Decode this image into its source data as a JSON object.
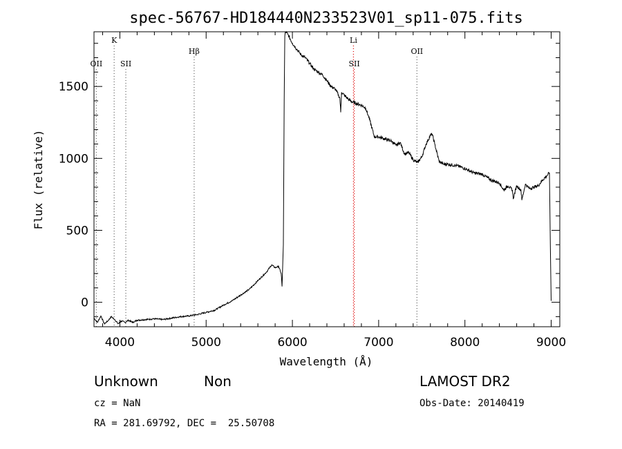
{
  "chart_data": {
    "type": "line",
    "title": "spec-56767-HD184440N233523V01_sp11-075.fits",
    "xlabel": "Wavelength (Å)",
    "ylabel": "Flux (relative)",
    "xlim": [
      3700,
      9100
    ],
    "ylim": [
      -170,
      1880
    ],
    "x_ticks": [
      "4000",
      "5000",
      "6000",
      "7000",
      "8000",
      "9000"
    ],
    "y_ticks": [
      "0",
      "500",
      "1000",
      "1500"
    ],
    "x_tick_values": [
      4000,
      5000,
      6000,
      7000,
      8000,
      9000
    ],
    "y_tick_values": [
      0,
      500,
      1000,
      1500
    ],
    "grid": false,
    "lines": [
      {
        "label": "OII",
        "x": 3727,
        "row": 2,
        "style": "dotted",
        "color": "#666666"
      },
      {
        "label": "K",
        "x": 3934,
        "row": 0,
        "style": "dotted",
        "color": "#666666"
      },
      {
        "label": "SII",
        "x": 4069,
        "row": 2,
        "style": "dotted",
        "color": "#666666"
      },
      {
        "label": "Hβ",
        "x": 4861,
        "row": 1,
        "style": "dotted",
        "color": "#666666"
      },
      {
        "label": "Li",
        "x": 6708,
        "row": 0,
        "style": "dotted",
        "color": "#dd0000"
      },
      {
        "label": "SII",
        "x": 6717,
        "row": 2,
        "style": "dotted",
        "color": "#dd0000"
      },
      {
        "label": "OII",
        "x": 7444,
        "row": 1,
        "style": "dotted",
        "color": "#666666"
      }
    ],
    "series": [
      {
        "x": [
          3700,
          3740,
          3780,
          3820,
          3860,
          3900,
          3940,
          3980,
          4020,
          4060,
          4100,
          4150,
          4200,
          4300,
          4400,
          4500,
          4600,
          4700,
          4800,
          4900,
          5000,
          5100,
          5200,
          5300,
          5400,
          5500,
          5600,
          5700,
          5760,
          5800,
          5840,
          5870,
          5880,
          5895,
          5905,
          5912,
          5920,
          5950,
          6000,
          6050,
          6100,
          6150,
          6200,
          6250,
          6300,
          6350,
          6400,
          6450,
          6500,
          6550,
          6560,
          6570,
          6600,
          6650,
          6700,
          6750,
          6800,
          6850,
          6900,
          6950,
          7000,
          7050,
          7100,
          7150,
          7200,
          7250,
          7300,
          7350,
          7400,
          7450,
          7500,
          7550,
          7600,
          7620,
          7650,
          7700,
          7750,
          7800,
          7900,
          8000,
          8100,
          8200,
          8300,
          8400,
          8450,
          8500,
          8550,
          8560,
          8600,
          8650,
          8660,
          8700,
          8750,
          8800,
          8850,
          8900,
          8950,
          8980,
          8990,
          9000
        ],
        "y": [
          -110,
          -140,
          -95,
          -150,
          -130,
          -100,
          -120,
          -150,
          -130,
          -140,
          -125,
          -140,
          -125,
          -120,
          -115,
          -120,
          -110,
          -100,
          -95,
          -85,
          -70,
          -55,
          -20,
          10,
          50,
          90,
          150,
          210,
          260,
          240,
          250,
          200,
          110,
          400,
          1400,
          1850,
          1880,
          1860,
          1800,
          1760,
          1720,
          1700,
          1660,
          1620,
          1600,
          1580,
          1540,
          1500,
          1480,
          1420,
          1320,
          1460,
          1440,
          1410,
          1390,
          1380,
          1370,
          1350,
          1260,
          1150,
          1150,
          1140,
          1130,
          1120,
          1090,
          1110,
          1030,
          1040,
          990,
          970,
          1010,
          1100,
          1160,
          1170,
          1100,
          980,
          960,
          960,
          950,
          930,
          900,
          890,
          850,
          830,
          780,
          810,
          780,
          720,
          810,
          780,
          710,
          820,
          790,
          800,
          810,
          850,
          880,
          900,
          400,
          10
        ]
      }
    ]
  },
  "info": {
    "object_class": "Unknown",
    "object_subclass": "Non",
    "survey": "LAMOST DR2",
    "cz": "cz = NaN",
    "obs_date": "Obs-Date: 20140419",
    "coords": "RA = 281.69792, DEC =  25.50708"
  }
}
